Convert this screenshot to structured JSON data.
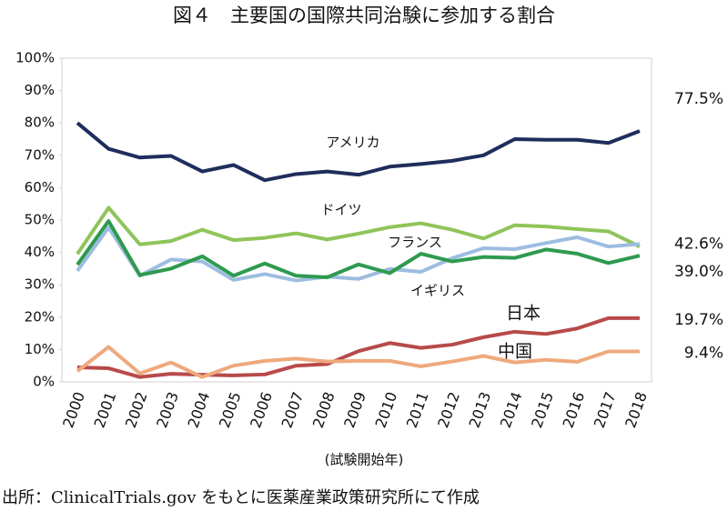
{
  "chart_data": {
    "type": "line",
    "title": "図４　主要国の国際共同治験に参加する割合",
    "x_label": "(試験開始年)",
    "source": "出所：ClinicalTrials.gov をもとに医薬産業政策研究所にて作成",
    "categories": [
      "2000",
      "2001",
      "2002",
      "2003",
      "2004",
      "2005",
      "2006",
      "2007",
      "2008",
      "2009",
      "2010",
      "2011",
      "2012",
      "2013",
      "2014",
      "2015",
      "2016",
      "2017",
      "2018"
    ],
    "ylim": [
      0,
      100
    ],
    "yticks": [
      {
        "value": 0,
        "label": "0%"
      },
      {
        "value": 10,
        "label": "10%"
      },
      {
        "value": 20,
        "label": "20%"
      },
      {
        "value": 30,
        "label": "30%"
      },
      {
        "value": 40,
        "label": "40%"
      },
      {
        "value": 50,
        "label": "50%"
      },
      {
        "value": 60,
        "label": "60%"
      },
      {
        "value": 70,
        "label": "70%"
      },
      {
        "value": 80,
        "label": "80%"
      },
      {
        "value": 90,
        "label": "90%"
      },
      {
        "value": 100,
        "label": "100%"
      }
    ],
    "series": [
      {
        "name": "アメリカ",
        "color": "#1f2d5c",
        "values": [
          80,
          72,
          69.3,
          69.8,
          65,
          67,
          62.3,
          64.2,
          65,
          64,
          66.5,
          67.3,
          68.3,
          70,
          75,
          74.8,
          74.8,
          73.8,
          77.5
        ],
        "value_labels": [
          null,
          null,
          null,
          null,
          null,
          null,
          null,
          null,
          null,
          null,
          null,
          null,
          null,
          null,
          null,
          null,
          null,
          null,
          "77.5%"
        ]
      },
      {
        "name": "ドイツ",
        "color": "#8fc45a",
        "values": [
          39.5,
          53.8,
          42.5,
          43.5,
          47,
          43.8,
          44.5,
          45.9,
          44,
          45.8,
          47.8,
          49,
          47,
          44.3,
          48.4,
          48,
          47.2,
          46.5,
          41.8
        ]
      },
      {
        "name": "フランス",
        "color": "#9dbde0",
        "values": [
          34.3,
          47.7,
          32.8,
          37.8,
          37.2,
          31.5,
          33.3,
          31.3,
          32.5,
          31.8,
          34.9,
          34,
          38.2,
          41.3,
          41,
          42.9,
          44.7,
          41.8,
          42.6
        ],
        "value_labels": [
          null,
          null,
          null,
          null,
          null,
          null,
          null,
          null,
          null,
          null,
          null,
          null,
          null,
          null,
          null,
          null,
          null,
          null,
          "42.6%"
        ]
      },
      {
        "name": "イギリス",
        "color": "#2e9a4f",
        "values": [
          36.2,
          49.7,
          33,
          35,
          38.8,
          32.8,
          36.6,
          32.8,
          32.3,
          36.3,
          33.6,
          39.6,
          37.2,
          38.6,
          38.3,
          40.9,
          39.6,
          36.7,
          39.0
        ],
        "value_labels": [
          null,
          null,
          null,
          null,
          null,
          null,
          null,
          null,
          null,
          null,
          null,
          null,
          null,
          null,
          null,
          null,
          null,
          null,
          "39.0%"
        ]
      },
      {
        "name": "日本",
        "color": "#b84a4a",
        "values": [
          4.5,
          4.2,
          1.5,
          2.5,
          2.2,
          2,
          2.3,
          5,
          5.5,
          9.5,
          12,
          10.5,
          11.5,
          13.8,
          15.5,
          14.8,
          16.5,
          19.7,
          19.7
        ],
        "value_labels": [
          null,
          null,
          null,
          null,
          null,
          null,
          null,
          null,
          null,
          null,
          null,
          null,
          null,
          null,
          null,
          null,
          null,
          null,
          "19.7%"
        ]
      },
      {
        "name": "中国",
        "color": "#eea97d",
        "values": [
          3.3,
          10.8,
          2.6,
          6,
          1.5,
          5,
          6.5,
          7.2,
          6.3,
          6.5,
          6.5,
          4.8,
          6.3,
          8,
          6,
          6.8,
          6.2,
          9.4,
          9.4
        ],
        "value_labels": [
          null,
          null,
          null,
          null,
          null,
          null,
          null,
          null,
          null,
          null,
          null,
          null,
          null,
          null,
          null,
          null,
          null,
          null,
          "9.4%"
        ]
      }
    ]
  }
}
